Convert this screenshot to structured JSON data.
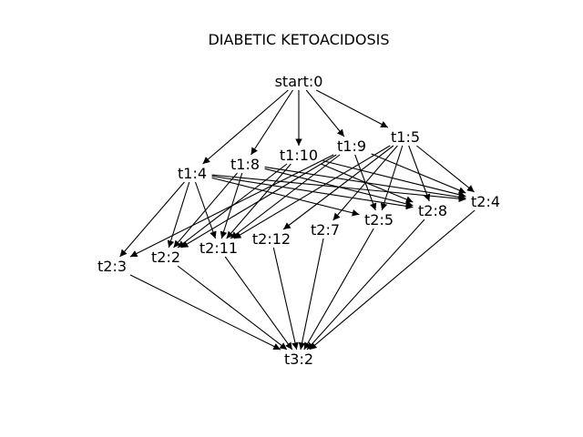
{
  "title": "DIABETIC KETOACIDOSIS",
  "colors": {
    "edge": "#000000",
    "text": "#000000",
    "background": "#ffffff"
  },
  "nodes": [
    {
      "id": "start:0",
      "label": "start:0"
    },
    {
      "id": "t1:5",
      "label": "t1:5"
    },
    {
      "id": "t1:9",
      "label": "t1:9"
    },
    {
      "id": "t1:10",
      "label": "t1:10"
    },
    {
      "id": "t1:8",
      "label": "t1:8"
    },
    {
      "id": "t1:4",
      "label": "t1:4"
    },
    {
      "id": "t2:4",
      "label": "t2:4"
    },
    {
      "id": "t2:8",
      "label": "t2:8"
    },
    {
      "id": "t2:5",
      "label": "t2:5"
    },
    {
      "id": "t2:7",
      "label": "t2:7"
    },
    {
      "id": "t2:12",
      "label": "t2:12"
    },
    {
      "id": "t2:11",
      "label": "t2:11"
    },
    {
      "id": "t2:2",
      "label": "t2:2"
    },
    {
      "id": "t2:3",
      "label": "t2:3"
    },
    {
      "id": "t3:2",
      "label": "t3:2"
    }
  ],
  "edges": [
    [
      "start:0",
      "t1:4"
    ],
    [
      "start:0",
      "t1:8"
    ],
    [
      "start:0",
      "t1:10"
    ],
    [
      "start:0",
      "t1:9"
    ],
    [
      "start:0",
      "t1:5"
    ],
    [
      "t1:5",
      "t2:4"
    ],
    [
      "t1:5",
      "t2:8"
    ],
    [
      "t1:5",
      "t2:5"
    ],
    [
      "t1:5",
      "t2:7"
    ],
    [
      "t1:5",
      "t2:12"
    ],
    [
      "t1:5",
      "t2:11"
    ],
    [
      "t1:9",
      "t2:5"
    ],
    [
      "t1:9",
      "t2:4"
    ],
    [
      "t1:9",
      "t2:2"
    ],
    [
      "t1:9",
      "t2:3"
    ],
    [
      "t1:9",
      "t2:11"
    ],
    [
      "t1:10",
      "t2:4"
    ],
    [
      "t1:10",
      "t2:8"
    ],
    [
      "t1:10",
      "t2:11"
    ],
    [
      "t1:10",
      "t2:2"
    ],
    [
      "t1:8",
      "t2:4"
    ],
    [
      "t1:8",
      "t2:8"
    ],
    [
      "t1:8",
      "t2:2"
    ],
    [
      "t1:8",
      "t2:11"
    ],
    [
      "t1:4",
      "t2:4"
    ],
    [
      "t1:4",
      "t2:8"
    ],
    [
      "t1:4",
      "t2:5"
    ],
    [
      "t1:4",
      "t2:3"
    ],
    [
      "t1:4",
      "t2:2"
    ],
    [
      "t1:4",
      "t2:11"
    ],
    [
      "t2:4",
      "t3:2"
    ],
    [
      "t2:8",
      "t3:2"
    ],
    [
      "t2:5",
      "t3:2"
    ],
    [
      "t2:7",
      "t3:2"
    ],
    [
      "t2:12",
      "t3:2"
    ],
    [
      "t2:11",
      "t3:2"
    ],
    [
      "t2:2",
      "t3:2"
    ],
    [
      "t2:3",
      "t3:2"
    ]
  ]
}
